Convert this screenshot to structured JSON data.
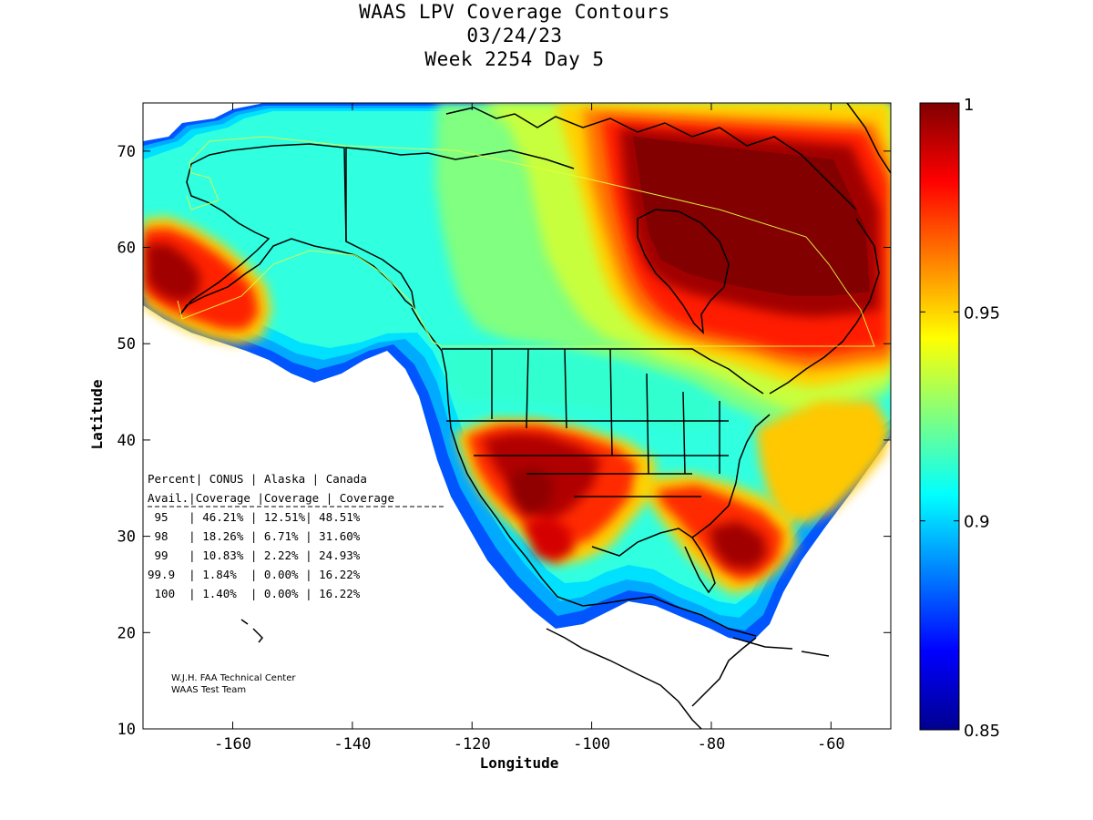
{
  "title": {
    "line1": "WAAS LPV Coverage Contours",
    "line2": "03/24/23",
    "line3": "Week 2254 Day 5"
  },
  "axes": {
    "xlabel": "Longitude",
    "ylabel": "Latitude",
    "x_ticks": [
      "-160",
      "-140",
      "-120",
      "-100",
      "-80",
      "-60"
    ],
    "y_ticks": [
      "10",
      "20",
      "30",
      "40",
      "50",
      "60",
      "70"
    ],
    "xlim": [
      -175,
      -50
    ],
    "ylim": [
      10,
      75
    ]
  },
  "colorbar": {
    "ticks": [
      "0.85",
      "0.9",
      "0.95",
      "1"
    ],
    "range": [
      0.85,
      1
    ],
    "colormap": "jet",
    "colors": [
      "#00008f",
      "#0000ff",
      "#00ffff",
      "#ffff00",
      "#ff0000",
      "#800000"
    ]
  },
  "coverage_table": {
    "header1": [
      "Percent",
      "CONUS",
      "Alaska",
      "Canada"
    ],
    "header2": [
      "Avail.",
      "Coverage",
      "Coverage",
      "Coverage"
    ],
    "rows": [
      {
        "percent": "95",
        "conus": "46.21%",
        "alaska": "12.51%",
        "canada": "48.51%"
      },
      {
        "percent": "98",
        "conus": "18.26%",
        "alaska": "6.71%",
        "canada": "31.60%"
      },
      {
        "percent": "99",
        "conus": "10.83%",
        "alaska": "2.22%",
        "canada": "24.93%"
      },
      {
        "percent": "99.9",
        "conus": "1.84%",
        "alaska": "0.00%",
        "canada": "16.22%"
      },
      {
        "percent": "100",
        "conus": "1.40%",
        "alaska": "0.00%",
        "canada": "16.22%"
      }
    ]
  },
  "credit": {
    "line1": "W.J.H. FAA Technical Center",
    "line2": "WAAS Test Team"
  }
}
